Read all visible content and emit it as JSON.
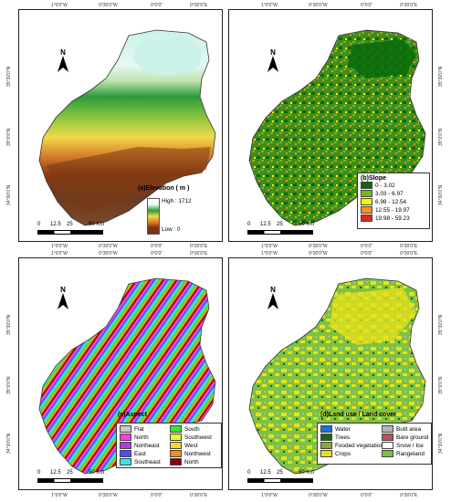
{
  "ticks": {
    "top": [
      "1°0'0\"W",
      "0°30'0\"W",
      "0°0'0\"",
      "0°30'0\"E"
    ],
    "bottom": [
      "1°0'0\"W",
      "0°30'0\"W",
      "0°0'0\"",
      "0°30'0\"E"
    ],
    "lat": [
      "35°30'0\"N",
      "35°0'0\"N",
      "34°30'0\"N"
    ]
  },
  "north_label": "N",
  "scale": {
    "labels": [
      "0",
      "12.5",
      "25",
      "50 Km"
    ]
  },
  "panels": {
    "elevation": {
      "title": "(a)Elevation ( m )",
      "high": "High : 1712",
      "low": "Low : 0",
      "colors": [
        "#e8f7f2",
        "#ffffff",
        "#1b8a2e",
        "#7dc242",
        "#f4e34a",
        "#d9822b",
        "#8b2d10",
        "#6b3a20"
      ]
    },
    "slope": {
      "title": "(b)Slope",
      "classes": [
        {
          "label": "0 - 3.02",
          "color": "#0b6b0b"
        },
        {
          "label": "3.03 - 6.97",
          "color": "#7cb518"
        },
        {
          "label": "6.98 - 12.54",
          "color": "#fff200"
        },
        {
          "label": "12.55 - 19.97",
          "color": "#f7941d"
        },
        {
          "label": "19.98 - 59.23",
          "color": "#e3261b"
        }
      ]
    },
    "aspect": {
      "title": "(c)Aspect",
      "classes": [
        {
          "label": "Flat",
          "color": "#c8c8c8"
        },
        {
          "label": "North",
          "color": "#ff3be0"
        },
        {
          "label": "Northeast",
          "color": "#b23be8"
        },
        {
          "label": "East",
          "color": "#4c4cff"
        },
        {
          "label": "Southeast",
          "color": "#33e6e6"
        },
        {
          "label": "South",
          "color": "#33e633"
        },
        {
          "label": "Southwest",
          "color": "#e6ff33"
        },
        {
          "label": "West",
          "color": "#ffd733"
        },
        {
          "label": "Northwest",
          "color": "#ff8c1a"
        },
        {
          "label": "North",
          "color": "#8b0000"
        }
      ]
    },
    "landuse": {
      "title": "(d)Land use / Land cover",
      "classes": [
        {
          "label": "Water",
          "color": "#1e6fe0"
        },
        {
          "label": "Trees",
          "color": "#1f5f1f"
        },
        {
          "label": "Fooded vegetation",
          "color": "#8ba63a"
        },
        {
          "label": "Crops",
          "color": "#e8e21a"
        },
        {
          "label": "Built area",
          "color": "#b5b5b5"
        },
        {
          "label": "Bare ground",
          "color": "#b5545a"
        },
        {
          "label": "Snow / Ice",
          "color": "#ffffff"
        },
        {
          "label": "Rangeland",
          "color": "#7dc242"
        }
      ]
    }
  }
}
